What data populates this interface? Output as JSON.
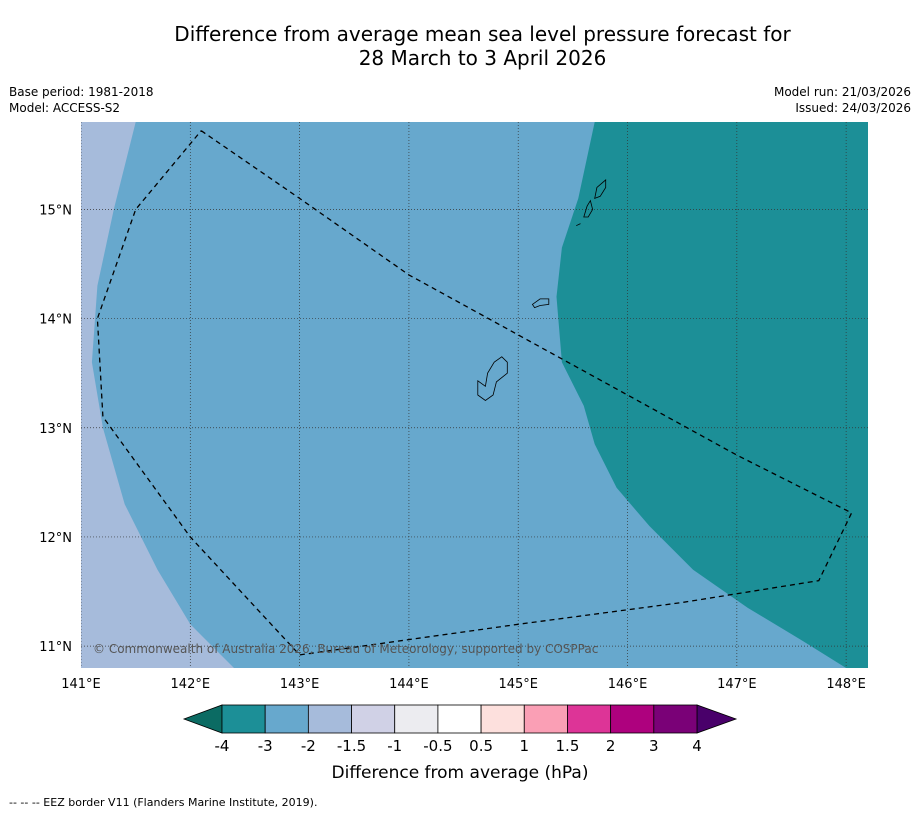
{
  "title": {
    "line1": "Difference from average mean sea level pressure forecast for",
    "line2": "28 March to 3 April 2026"
  },
  "meta_left": {
    "base_period": "Base period: 1981-2018",
    "model": "Model: ACCESS-S2"
  },
  "meta_right": {
    "model_run": "Model run: 21/03/2026",
    "issued": "Issued: 24/03/2026"
  },
  "map": {
    "lon_min": 141.0,
    "lon_max": 148.2,
    "lat_min": 10.8,
    "lat_max": 15.8,
    "lon_ticks": [
      141,
      142,
      143,
      144,
      145,
      146,
      147,
      148
    ],
    "lat_ticks": [
      11,
      12,
      13,
      14,
      15
    ],
    "lon_labels": [
      "141°E",
      "142°E",
      "143°E",
      "144°E",
      "145°E",
      "146°E",
      "147°E",
      "148°E"
    ],
    "lat_labels": [
      "11°N",
      "12°N",
      "13°N",
      "14°N",
      "15°N"
    ],
    "copyright": "© Commonwealth of Australia 2026, Bureau of Meteorology, supported by COSPPac",
    "regions": [
      {
        "name": "-2 to -1.5 hPa",
        "color": "#a6bbdb",
        "polygon": [
          [
            141.0,
            15.8
          ],
          [
            141.5,
            15.8
          ],
          [
            141.3,
            15.0
          ],
          [
            141.15,
            14.3
          ],
          [
            141.1,
            13.6
          ],
          [
            141.2,
            13.0
          ],
          [
            141.4,
            12.3
          ],
          [
            141.7,
            11.7
          ],
          [
            142.0,
            11.2
          ],
          [
            142.4,
            10.8
          ],
          [
            141.0,
            10.8
          ]
        ]
      },
      {
        "name": "-4 to -3 hPa",
        "color": "#1c8f97",
        "polygon": [
          [
            145.7,
            15.8
          ],
          [
            148.2,
            15.8
          ],
          [
            148.2,
            10.8
          ],
          [
            148.0,
            10.8
          ],
          [
            147.6,
            11.05
          ],
          [
            147.1,
            11.35
          ],
          [
            146.6,
            11.7
          ],
          [
            146.2,
            12.1
          ],
          [
            145.9,
            12.45
          ],
          [
            145.7,
            12.85
          ],
          [
            145.6,
            13.2
          ],
          [
            145.4,
            13.6
          ],
          [
            145.35,
            14.2
          ],
          [
            145.4,
            14.65
          ],
          [
            145.55,
            15.1
          ],
          [
            145.7,
            15.8
          ]
        ]
      }
    ],
    "base_color": "#67a8cd",
    "eez_border": [
      [
        142.1,
        15.72
      ],
      [
        143.0,
        15.1
      ],
      [
        144.0,
        14.4
      ],
      [
        145.0,
        13.85
      ],
      [
        146.0,
        13.3
      ],
      [
        147.0,
        12.75
      ],
      [
        148.05,
        12.22
      ],
      [
        147.75,
        11.6
      ],
      [
        146.5,
        11.4
      ],
      [
        145.0,
        11.2
      ],
      [
        143.0,
        10.92
      ],
      [
        142.0,
        12.0
      ],
      [
        141.2,
        13.1
      ],
      [
        141.15,
        14.0
      ],
      [
        141.5,
        15.0
      ],
      [
        142.1,
        15.72
      ]
    ],
    "islands": [
      {
        "name": "Guam",
        "points": [
          [
            144.7,
            13.38
          ],
          [
            144.72,
            13.5
          ],
          [
            144.78,
            13.6
          ],
          [
            144.85,
            13.65
          ],
          [
            144.9,
            13.6
          ],
          [
            144.9,
            13.5
          ],
          [
            144.8,
            13.42
          ],
          [
            144.77,
            13.3
          ],
          [
            144.7,
            13.25
          ],
          [
            144.63,
            13.3
          ],
          [
            144.63,
            13.43
          ]
        ]
      },
      {
        "name": "Rota",
        "points": [
          [
            145.13,
            14.13
          ],
          [
            145.2,
            14.18
          ],
          [
            145.28,
            14.18
          ],
          [
            145.28,
            14.13
          ],
          [
            145.2,
            14.12
          ],
          [
            145.15,
            14.1
          ]
        ]
      },
      {
        "name": "Tinian",
        "points": [
          [
            145.6,
            14.93
          ],
          [
            145.63,
            15.03
          ],
          [
            145.66,
            15.08
          ],
          [
            145.68,
            15.0
          ],
          [
            145.64,
            14.93
          ]
        ]
      },
      {
        "name": "Saipan",
        "points": [
          [
            145.7,
            15.1
          ],
          [
            145.72,
            15.2
          ],
          [
            145.8,
            15.27
          ],
          [
            145.8,
            15.2
          ],
          [
            145.75,
            15.12
          ]
        ]
      },
      {
        "name": "Aguijan",
        "points": [
          [
            145.53,
            14.85
          ],
          [
            145.57,
            14.87
          ]
        ]
      }
    ]
  },
  "colorbar": {
    "colors": [
      "#1c8f97",
      "#67a8cd",
      "#a6bbdb",
      "#d0d1e6",
      "#ececf0",
      "#ffffff",
      "#fde0dd",
      "#fa9fb5",
      "#dd3497",
      "#ae017e",
      "#7a0177"
    ],
    "under_color": "#0b6b63",
    "over_color": "#49006a",
    "labels": [
      "-4",
      "-3",
      "-2",
      "-1.5",
      "-1",
      "-0.5",
      "0.5",
      "1",
      "1.5",
      "2",
      "3",
      "4"
    ],
    "title": "Difference from average (hPa)"
  },
  "footer": "--  --  -- EEZ border V11 (Flanders Marine Institute, 2019)."
}
